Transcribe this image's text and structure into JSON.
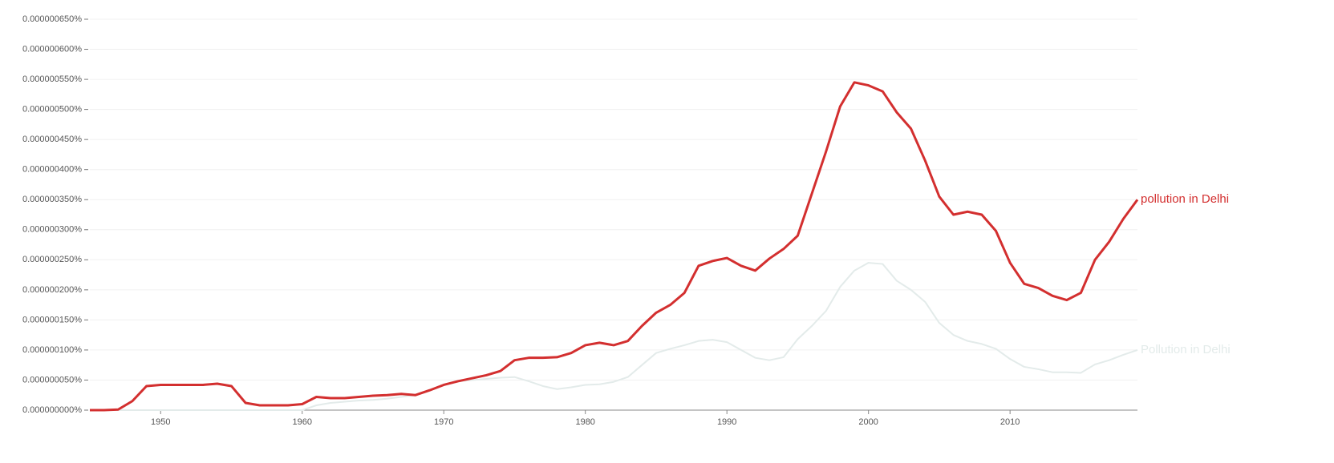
{
  "chart_data": {
    "type": "line",
    "x": [
      1945,
      1946,
      1947,
      1948,
      1949,
      1950,
      1951,
      1952,
      1953,
      1954,
      1955,
      1956,
      1957,
      1958,
      1959,
      1960,
      1961,
      1962,
      1963,
      1964,
      1965,
      1966,
      1967,
      1968,
      1969,
      1970,
      1971,
      1972,
      1973,
      1974,
      1975,
      1976,
      1977,
      1978,
      1979,
      1980,
      1981,
      1982,
      1983,
      1984,
      1985,
      1986,
      1987,
      1988,
      1989,
      1990,
      1991,
      1992,
      1993,
      1994,
      1995,
      1996,
      1997,
      1998,
      1999,
      2000,
      2001,
      2002,
      2003,
      2004,
      2005,
      2006,
      2007,
      2008,
      2009,
      2010,
      2011,
      2012,
      2013,
      2014,
      2015,
      2016,
      2017,
      2018,
      2019
    ],
    "series": [
      {
        "name": "Pollution in Delhi",
        "color": "#e3ebea",
        "values": [
          0,
          0,
          0,
          0,
          0,
          0,
          0,
          0,
          0,
          0,
          0,
          0,
          0,
          0,
          0,
          0,
          8e-09,
          1.2e-08,
          1.4e-08,
          1.6e-08,
          1.7e-08,
          1.9e-08,
          2.2e-08,
          2.5e-08,
          3.2e-08,
          4.2e-08,
          4.8e-08,
          5e-08,
          5.2e-08,
          5.4e-08,
          5.5e-08,
          4.8e-08,
          4e-08,
          3.5e-08,
          3.8e-08,
          4.2e-08,
          4.3e-08,
          4.7e-08,
          5.5e-08,
          7.5e-08,
          9.5e-08,
          1.02e-07,
          1.08e-07,
          1.15e-07,
          1.17e-07,
          1.13e-07,
          1e-07,
          8.7e-08,
          8.3e-08,
          8.8e-08,
          1.18e-07,
          1.4e-07,
          1.65e-07,
          2.05e-07,
          2.32e-07,
          2.45e-07,
          2.43e-07,
          2.15e-07,
          2e-07,
          1.8e-07,
          1.45e-07,
          1.25e-07,
          1.15e-07,
          1.1e-07,
          1.02e-07,
          8.5e-08,
          7.2e-08,
          6.8e-08,
          6.3e-08,
          6.3e-08,
          6.2e-08,
          7.6e-08,
          8.3e-08,
          9.2e-08,
          1e-07
        ]
      },
      {
        "name": "pollution in Delhi",
        "color": "#d32f2f",
        "values": [
          0,
          0,
          1e-09,
          1.5e-08,
          4e-08,
          4.2e-08,
          4.2e-08,
          4.2e-08,
          4.2e-08,
          4.4e-08,
          4e-08,
          1.2e-08,
          8e-09,
          8e-09,
          8e-09,
          1e-08,
          2.2e-08,
          2e-08,
          2e-08,
          2.2e-08,
          2.4e-08,
          2.5e-08,
          2.7e-08,
          2.5e-08,
          3.3e-08,
          4.2e-08,
          4.8e-08,
          5.3e-08,
          5.8e-08,
          6.5e-08,
          8.3e-08,
          8.7e-08,
          8.7e-08,
          8.8e-08,
          9.5e-08,
          1.08e-07,
          1.12e-07,
          1.08e-07,
          1.15e-07,
          1.4e-07,
          1.62e-07,
          1.75e-07,
          1.95e-07,
          2.4e-07,
          2.48e-07,
          2.53e-07,
          2.4e-07,
          2.32e-07,
          2.52e-07,
          2.68e-07,
          2.9e-07,
          3.6e-07,
          4.3e-07,
          5.05e-07,
          5.45e-07,
          5.4e-07,
          5.3e-07,
          4.95e-07,
          4.68e-07,
          4.15e-07,
          3.55e-07,
          3.25e-07,
          3.3e-07,
          3.25e-07,
          2.98e-07,
          2.45e-07,
          2.1e-07,
          2.03e-07,
          1.9e-07,
          1.83e-07,
          1.95e-07,
          2.5e-07,
          2.8e-07,
          3.18e-07,
          3.5e-07
        ]
      }
    ],
    "xlim": [
      1945,
      2019
    ],
    "xticks": [
      1950,
      1960,
      1970,
      1980,
      1990,
      2000,
      2010
    ],
    "ylim": [
      0,
      6.5e-07
    ],
    "yticks": [
      {
        "value": 0,
        "label": "0.000000000%"
      },
      {
        "value": 5e-08,
        "label": "0.000000050%"
      },
      {
        "value": 1e-07,
        "label": "0.000000100%"
      },
      {
        "value": 1.5e-07,
        "label": "0.000000150%"
      },
      {
        "value": 2e-07,
        "label": "0.000000200%"
      },
      {
        "value": 2.5e-07,
        "label": "0.000000250%"
      },
      {
        "value": 3e-07,
        "label": "0.000000300%"
      },
      {
        "value": 3.5e-07,
        "label": "0.000000350%"
      },
      {
        "value": 4e-07,
        "label": "0.000000400%"
      },
      {
        "value": 4.5e-07,
        "label": "0.000000450%"
      },
      {
        "value": 5e-07,
        "label": "0.000000500%"
      },
      {
        "value": 5.5e-07,
        "label": "0.000000550%"
      },
      {
        "value": 6e-07,
        "label": "0.000000600%"
      },
      {
        "value": 6.5e-07,
        "label": "0.000000650%"
      }
    ],
    "grid": true
  }
}
